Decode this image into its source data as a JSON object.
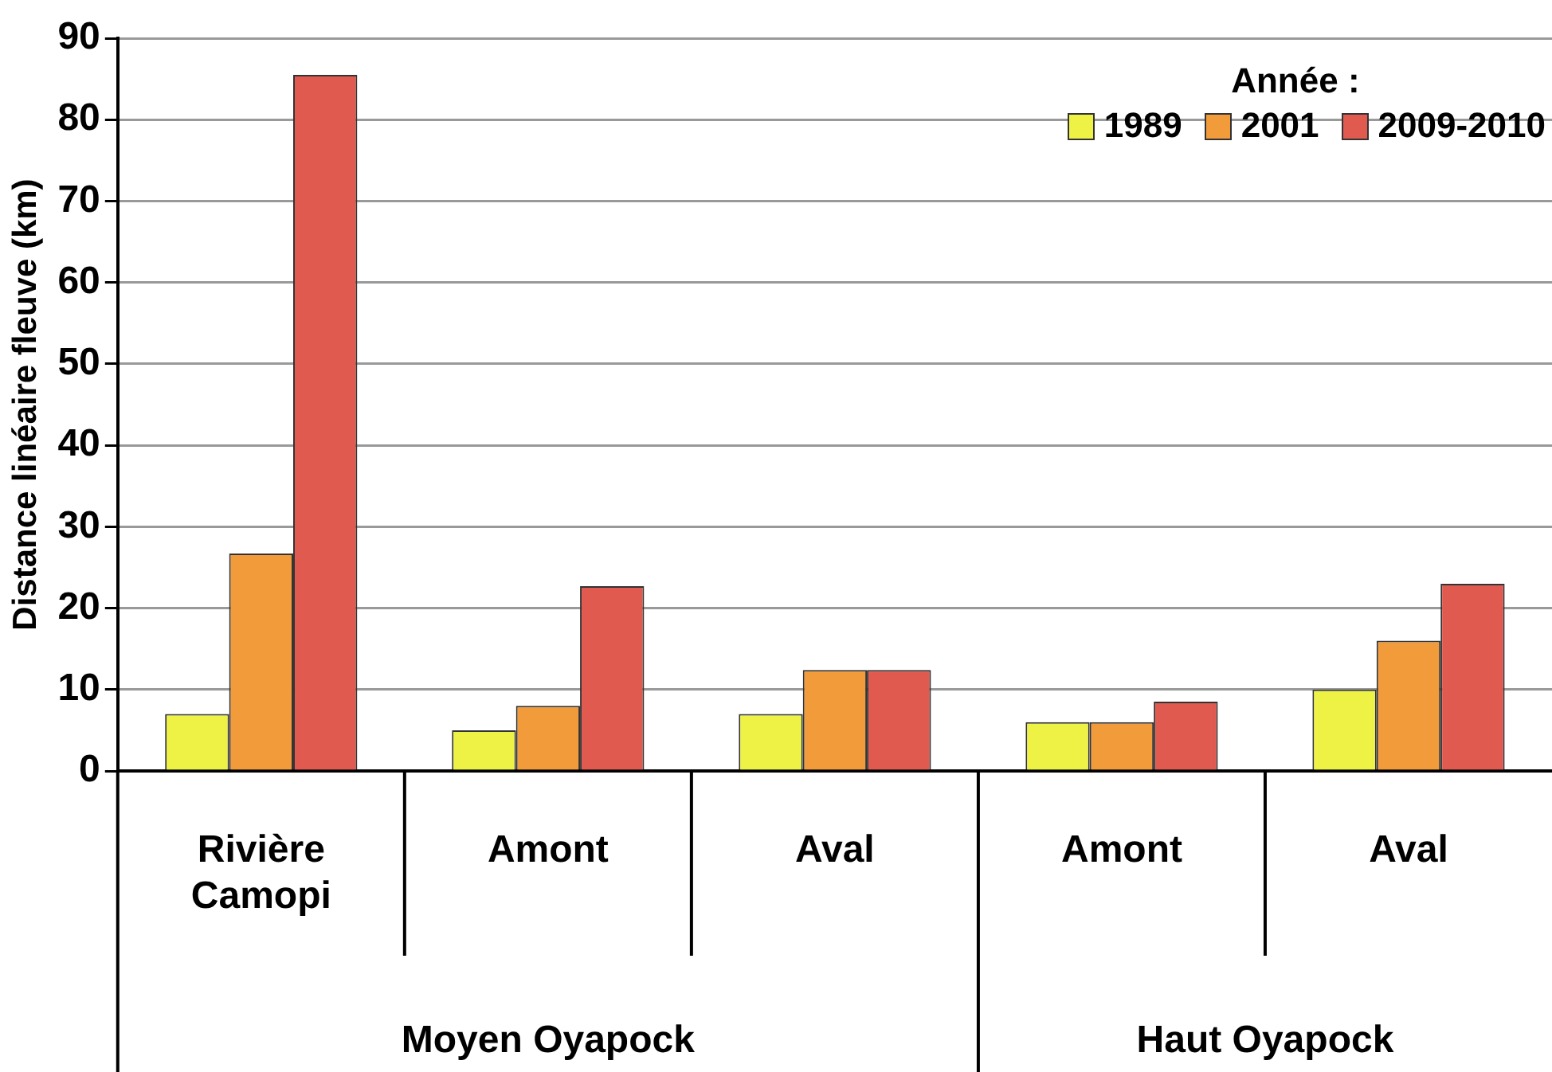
{
  "chart_data": {
    "type": "bar",
    "ylabel": "Distance linéaire fleuve (km)",
    "legend_title": "Année :",
    "categories": [
      "Rivière Camopi",
      "Amont",
      "Aval",
      "Amont",
      "Aval"
    ],
    "series": [
      {
        "name": "1989",
        "color": "#eef244",
        "values": [
          7,
          5,
          7,
          6,
          10
        ]
      },
      {
        "name": "2001",
        "color": "#f29b3b",
        "values": [
          26.7,
          8,
          12.4,
          6,
          16
        ]
      },
      {
        "name": "2009-2010",
        "color": "#e05a50",
        "values": [
          85.5,
          22.7,
          12.4,
          8.5,
          23
        ]
      }
    ],
    "annotations": [
      "Moyen Oyapock",
      "Haut Oyapock"
    ],
    "ylim": [
      0,
      90
    ],
    "yticks": [
      0,
      10,
      20,
      30,
      40,
      50,
      60,
      70,
      80,
      90
    ],
    "grid": "y",
    "legend": "top right"
  }
}
